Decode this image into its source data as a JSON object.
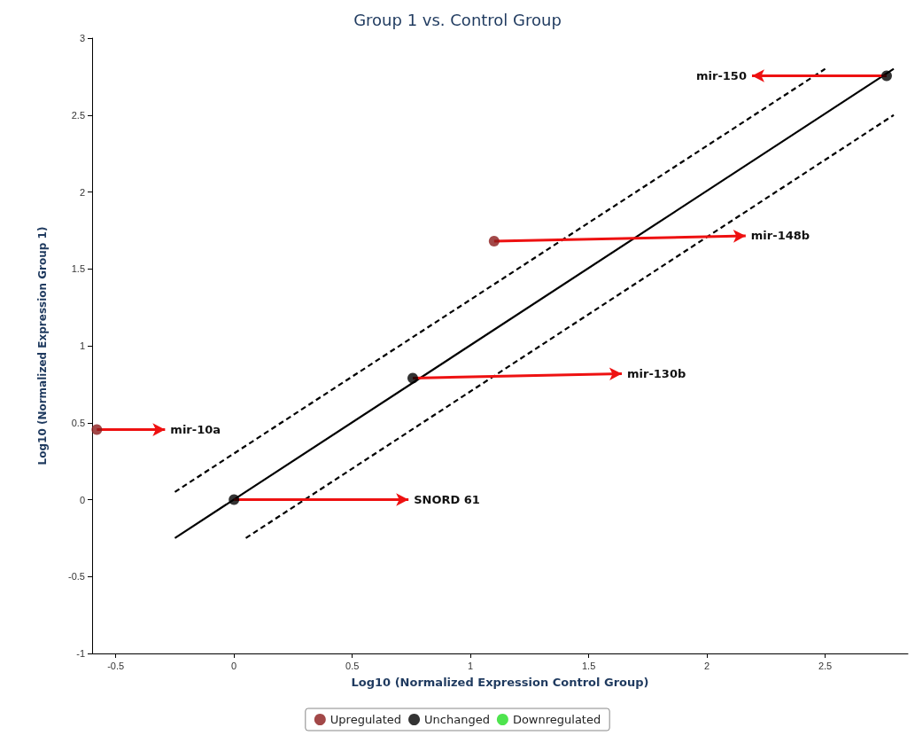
{
  "chart_data": {
    "type": "scatter",
    "title": "Group 1 vs. Control Group",
    "xlabel": "Log10 (Normalized Expression Control Group)",
    "ylabel": "Log10 (Normalized Expression Group 1)",
    "xlim": [
      -0.6,
      2.85
    ],
    "xticks": [
      -0.5,
      0,
      0.5,
      1,
      1.5,
      2,
      2.5
    ],
    "ylim": [
      -1,
      3
    ],
    "yticks": [
      -1,
      -0.5,
      0,
      0.5,
      1,
      1.5,
      2,
      2.5,
      3
    ],
    "grid": false,
    "legend": "bottom",
    "marker": "circle",
    "series": [
      {
        "name": "Upregulated",
        "color": "#8b1a1a",
        "x": [
          -0.58,
          1.1
        ],
        "values": [
          0.455,
          1.68
        ]
      },
      {
        "name": "Unchanged",
        "color": "#000000",
        "x": [
          0,
          0.756,
          2.76
        ],
        "values": [
          0,
          0.79,
          2.755
        ]
      },
      {
        "name": "Downregulated",
        "color": "#22dd22"
      },
      {
        "type": "line",
        "color": "#000000",
        "line_style": "solid",
        "marker": "none",
        "x": [
          -0.25,
          2.79
        ],
        "values": [
          -0.25,
          2.8
        ]
      },
      {
        "type": "line",
        "color": "#000000",
        "line_style": "dashed",
        "marker": "none",
        "x": [
          -0.25,
          2.5
        ],
        "values": [
          0.05,
          2.8
        ]
      },
      {
        "type": "line",
        "color": "#000000",
        "line_style": "dashed",
        "marker": "none",
        "x": [
          0.05,
          2.79
        ],
        "values": [
          -0.25,
          2.5
        ]
      }
    ],
    "annotations": [
      {
        "text": "mir-10a",
        "x": -0.58,
        "y": 0.455
      },
      {
        "text": "SNORD 61",
        "x": 0,
        "y": 0
      },
      {
        "text": "mir-130b",
        "x": 0.756,
        "y": 0.79
      },
      {
        "text": "mir-148b",
        "x": 1.1,
        "y": 1.68
      },
      {
        "text": "mir-150",
        "x": 2.76,
        "y": 2.755
      }
    ]
  }
}
